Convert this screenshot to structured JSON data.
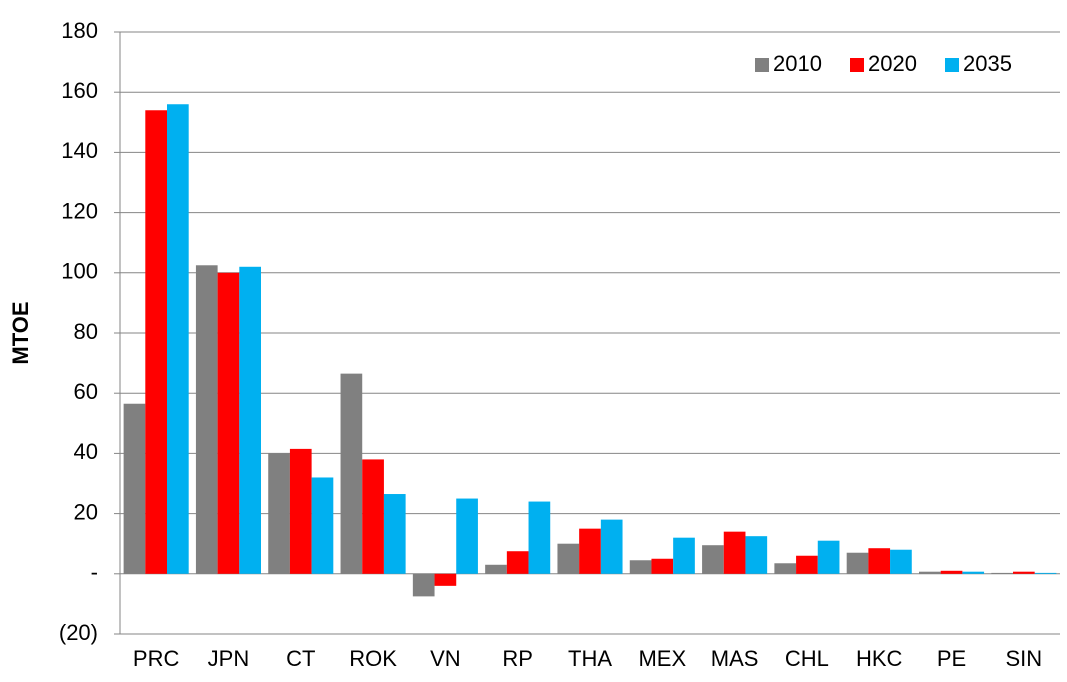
{
  "chart_data": {
    "type": "bar",
    "y_label": "MTOE",
    "categories": [
      "PRC",
      "JPN",
      "CT",
      "ROK",
      "VN",
      "RP",
      "THA",
      "MEX",
      "MAS",
      "CHL",
      "HKC",
      "PE",
      "SIN"
    ],
    "series": [
      {
        "name": "2010",
        "color": "#808080",
        "values": [
          56.5,
          102.5,
          40,
          66.5,
          -7.5,
          3,
          10,
          4.5,
          9.5,
          3.5,
          7,
          0.7,
          0.3
        ]
      },
      {
        "name": "2020",
        "color": "#ff0000",
        "values": [
          154,
          100,
          41.5,
          38,
          -4,
          7.5,
          15,
          5,
          14,
          6,
          8.5,
          1,
          0.7
        ]
      },
      {
        "name": "2035",
        "color": "#00b0f0",
        "values": [
          156,
          102,
          32,
          26.5,
          25,
          24,
          18,
          12,
          12.5,
          11,
          8,
          0.7,
          0.3
        ]
      }
    ],
    "ylim": [
      -20,
      180
    ],
    "yticks": [
      {
        "value": -20,
        "label": "(20)"
      },
      {
        "value": 0,
        "label": "-"
      },
      20,
      40,
      60,
      80,
      100,
      120,
      140,
      160,
      180
    ],
    "grid": true,
    "legend": "top-right"
  }
}
